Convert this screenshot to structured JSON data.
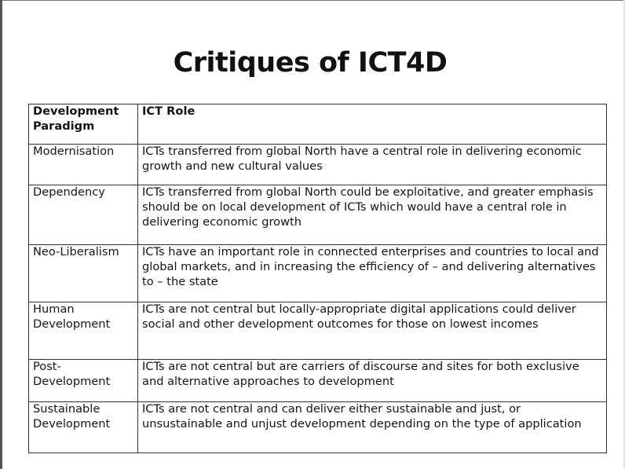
{
  "title": "Critiques of ICT4D",
  "table": {
    "headers": [
      "Development Paradigm",
      "ICT Role"
    ],
    "rows": [
      {
        "paradigm": "Modernisation",
        "role": "ICTs transferred from global North have a central role in delivering economic growth and new cultural values"
      },
      {
        "paradigm": "Dependency",
        "role": "ICTs transferred from global North could be exploitative, and greater emphasis should be on local development of ICTs which would have a central role in delivering economic growth"
      },
      {
        "paradigm": "Neo-Liberalism",
        "role": "ICTs have an important role in connected enterprises and countries to local and global markets, and in increasing the efficiency of – and delivering alternatives to – the state"
      },
      {
        "paradigm": "Human Development",
        "role": "ICTs are not central but locally-appropriate digital applications could deliver social and other development outcomes for those on lowest incomes"
      },
      {
        "paradigm": "Post-Development",
        "role": "ICTs are not central but are carriers of discourse and sites for both exclusive and alternative approaches to development"
      },
      {
        "paradigm": "Sustainable Development",
        "role": "ICTs are not central and can deliver either sustainable and just, or unsustainable and unjust development depending on the type of application"
      }
    ]
  }
}
